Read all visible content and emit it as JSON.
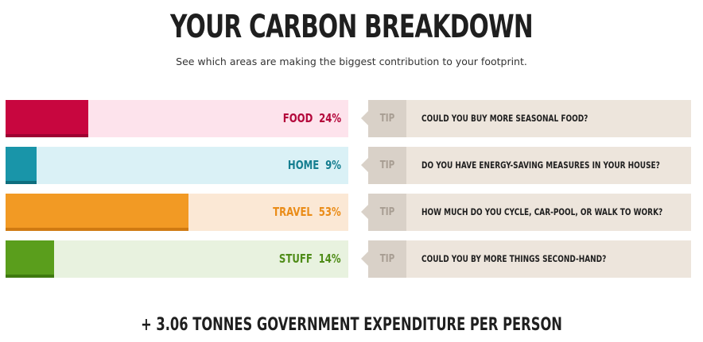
{
  "title": "YOUR CARBON BREAKDOWN",
  "subtitle": "See which areas are making the biggest contribution to your footprint.",
  "tip_tag": "TIP",
  "categories": [
    {
      "name": "FOOD",
      "percent_label": "24%",
      "share": 0.24,
      "color": "#c8063f",
      "shade": "#9e0232",
      "light": "#fde3ec",
      "label_color": "#b3063a",
      "tip": "COULD YOU BUY MORE SEASONAL FOOD?"
    },
    {
      "name": "HOME",
      "percent_label": "9%",
      "share": 0.09,
      "color": "#1995a9",
      "shade": "#0e6e7e",
      "light": "#daf1f6",
      "label_color": "#157e90",
      "tip": "DO YOU HAVE ENERGY-SAVING MEASURES IN YOUR HOUSE?"
    },
    {
      "name": "TRAVEL",
      "percent_label": "53%",
      "share": 0.53,
      "color": "#f29a24",
      "shade": "#d07a12",
      "light": "#fbe8d5",
      "label_color": "#ea8c18",
      "tip": "HOW MUCH DO YOU CYCLE, CAR-POOL, OR WALK TO WORK?"
    },
    {
      "name": "STUFF",
      "percent_label": "14%",
      "share": 0.14,
      "color": "#5a9e1c",
      "shade": "#3f7a0f",
      "light": "#e8f2df",
      "label_color": "#4f8c18",
      "tip": "COULD YOU BY MORE THINGS SECOND-HAND?"
    }
  ],
  "footer": "+ 3.06 TONNES GOVERNMENT EXPENDITURE PER PERSON"
}
